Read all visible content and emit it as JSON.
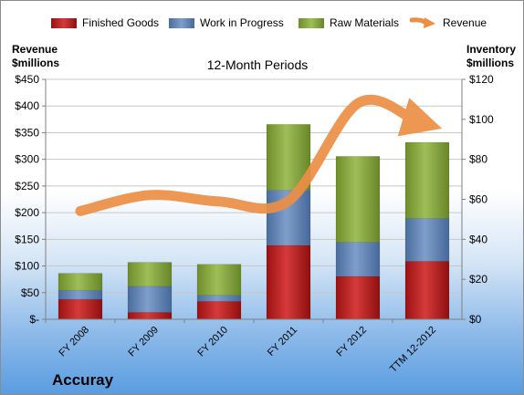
{
  "company": "Accuray",
  "colors": {
    "finished_goods": "#c0282b",
    "work_in_progress": "#6a8cbc",
    "raw_materials": "#8aab45",
    "revenue": "#ec8f45"
  },
  "chart_data": {
    "type": "bar",
    "stacked": true,
    "title": "12-Month Periods",
    "ylabel_left": [
      "Revenue",
      "$millions"
    ],
    "ylabel_right": [
      "Inventory",
      "$millions"
    ],
    "categories": [
      "FY 2008",
      "FY 2009",
      "FY 2010",
      "FY 2011",
      "FY 2012",
      "TTM 12-2012"
    ],
    "ylim_left": [
      0,
      450
    ],
    "yticks_left": [
      "$-",
      "$50",
      "$100",
      "$150",
      "$200",
      "$250",
      "$300",
      "$350",
      "$400",
      "$450"
    ],
    "ylim_right": [
      0,
      120
    ],
    "yticks_right": [
      "$0",
      "$20",
      "$40",
      "$60",
      "$80",
      "$100",
      "$120"
    ],
    "series": [
      {
        "name": "Finished Goods",
        "values": [
          10,
          3.5,
          9,
          37,
          21.5,
          29
        ]
      },
      {
        "name": "Work in Progress",
        "values": [
          4.5,
          13,
          3,
          27.5,
          17,
          21.5
        ]
      },
      {
        "name": "Raw Materials",
        "values": [
          8.5,
          12,
          15.5,
          33,
          43,
          38
        ]
      }
    ],
    "revenue": {
      "name": "Revenue",
      "values": [
        203,
        233,
        221,
        222,
        405,
        366
      ]
    },
    "legend_position": "top",
    "grid": true
  }
}
